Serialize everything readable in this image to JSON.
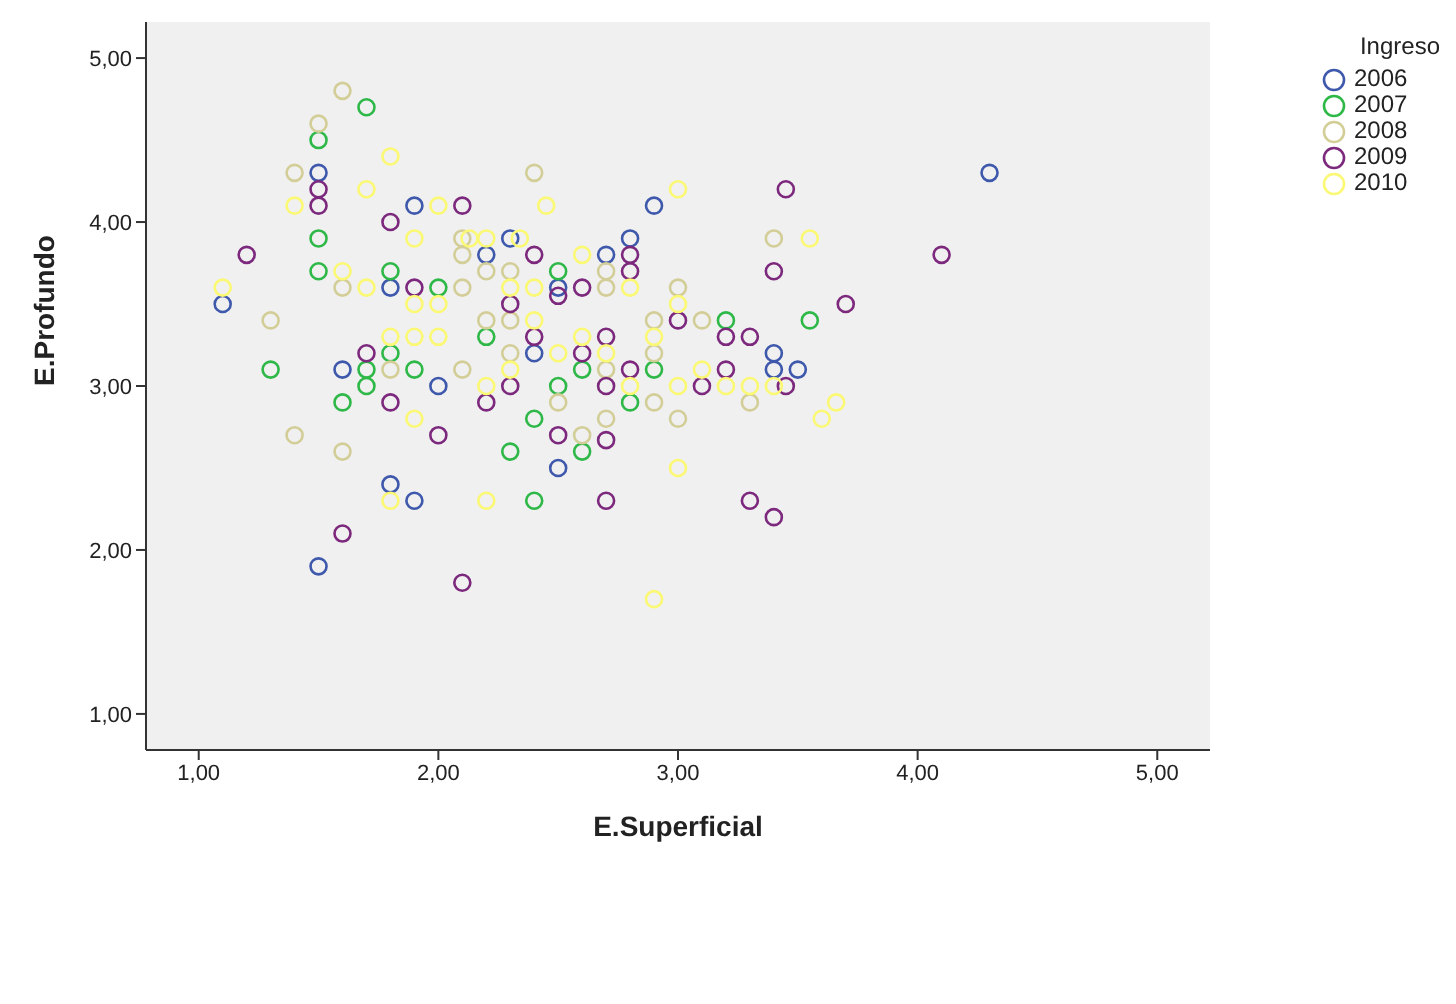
{
  "chart_data": {
    "type": "scatter",
    "xlabel": "E.Superficial",
    "ylabel": "E.Profundo",
    "legend_title": "Ingreso",
    "legend": "top right",
    "marker": "circle",
    "grid": false,
    "xlim": [
      0.78,
      5.22
    ],
    "ylim": [
      0.78,
      5.22
    ],
    "xticks": [
      {
        "value": 1,
        "label": "1,00"
      },
      {
        "value": 2,
        "label": "2,00"
      },
      {
        "value": 3,
        "label": "3,00"
      },
      {
        "value": 4,
        "label": "4,00"
      },
      {
        "value": 5,
        "label": "5,00"
      }
    ],
    "yticks": [
      {
        "value": 1,
        "label": "1,00"
      },
      {
        "value": 2,
        "label": "2,00"
      },
      {
        "value": 3,
        "label": "3,00"
      },
      {
        "value": 4,
        "label": "4,00"
      },
      {
        "value": 5,
        "label": "5,00"
      }
    ],
    "series": [
      {
        "name": "2006",
        "color": "#3e58ac",
        "x": [
          1.5,
          1.9,
          2.9,
          2.3,
          2.8,
          2.2,
          2.7,
          1.8,
          2.5,
          1.1,
          2.4,
          3.4,
          1.6,
          3.4,
          3.5,
          2.0,
          1.8,
          1.9,
          2.5,
          1.5,
          4.3
        ],
        "values": [
          4.3,
          4.1,
          4.1,
          3.9,
          3.9,
          3.8,
          3.8,
          3.6,
          3.6,
          3.5,
          3.2,
          3.2,
          3.1,
          3.1,
          3.1,
          3.0,
          2.4,
          2.3,
          2.5,
          1.9,
          4.3
        ]
      },
      {
        "name": "2007",
        "color": "#2eb848",
        "x": [
          1.7,
          1.5,
          1.5,
          1.5,
          1.8,
          2.5,
          2.0,
          2.2,
          3.2,
          3.55,
          1.8,
          1.3,
          1.7,
          1.9,
          2.6,
          2.9,
          1.7,
          2.5,
          1.6,
          2.8,
          2.4,
          2.3,
          2.6,
          2.4
        ],
        "values": [
          4.7,
          4.5,
          3.9,
          3.7,
          3.7,
          3.7,
          3.6,
          3.3,
          3.4,
          3.4,
          3.2,
          3.1,
          3.1,
          3.1,
          3.1,
          3.1,
          3.0,
          3.0,
          2.9,
          2.9,
          2.8,
          2.6,
          2.6,
          2.3
        ]
      },
      {
        "name": "2008",
        "color": "#d3ce97",
        "x": [
          1.6,
          1.5,
          1.4,
          2.4,
          2.1,
          3.4,
          2.1,
          2.2,
          2.3,
          2.7,
          1.6,
          2.1,
          2.7,
          3.0,
          1.3,
          2.2,
          2.3,
          2.9,
          3.1,
          2.3,
          2.9,
          1.8,
          2.1,
          2.7,
          2.5,
          2.9,
          3.3,
          2.7,
          3.0,
          1.4,
          2.6,
          1.6
        ],
        "values": [
          4.8,
          4.6,
          4.3,
          4.3,
          3.9,
          3.9,
          3.8,
          3.7,
          3.7,
          3.7,
          3.6,
          3.6,
          3.6,
          3.6,
          3.4,
          3.4,
          3.4,
          3.4,
          3.4,
          3.2,
          3.2,
          3.1,
          3.1,
          3.1,
          2.9,
          2.9,
          2.9,
          2.8,
          2.8,
          2.7,
          2.7,
          2.6
        ]
      },
      {
        "name": "2009",
        "color": "#7c287d",
        "x": [
          1.5,
          3.45,
          1.5,
          2.1,
          1.8,
          1.2,
          2.4,
          2.8,
          4.1,
          2.8,
          3.4,
          1.9,
          2.6,
          2.5,
          2.3,
          3.7,
          3.0,
          2.4,
          2.7,
          3.2,
          3.3,
          1.7,
          2.6,
          2.8,
          3.2,
          2.3,
          2.7,
          3.1,
          3.45,
          1.8,
          2.2,
          2.0,
          2.5,
          2.7,
          2.7,
          3.3,
          3.4,
          1.6,
          2.1
        ],
        "values": [
          4.2,
          4.2,
          4.1,
          4.1,
          4.0,
          3.8,
          3.8,
          3.8,
          3.8,
          3.7,
          3.7,
          3.6,
          3.6,
          3.55,
          3.5,
          3.5,
          3.4,
          3.3,
          3.3,
          3.3,
          3.3,
          3.2,
          3.2,
          3.1,
          3.1,
          3.0,
          3.0,
          3.0,
          3.0,
          2.9,
          2.9,
          2.7,
          2.7,
          2.67,
          2.3,
          2.3,
          2.2,
          2.1,
          1.8
        ]
      },
      {
        "name": "2010",
        "color": "#fbf873",
        "x": [
          1.8,
          1.7,
          3.0,
          1.4,
          2.0,
          2.45,
          1.9,
          2.13,
          2.2,
          2.34,
          3.55,
          2.6,
          1.6,
          1.1,
          1.7,
          2.3,
          2.4,
          2.8,
          1.9,
          2.0,
          3.0,
          2.4,
          1.8,
          1.9,
          2.0,
          2.6,
          2.9,
          2.5,
          2.7,
          2.3,
          3.1,
          2.2,
          2.8,
          3.0,
          3.2,
          3.3,
          3.4,
          3.66,
          1.9,
          3.6,
          3.0,
          1.8,
          2.2,
          2.9
        ],
        "values": [
          4.4,
          4.2,
          4.2,
          4.1,
          4.1,
          4.1,
          3.9,
          3.9,
          3.9,
          3.9,
          3.9,
          3.8,
          3.7,
          3.6,
          3.6,
          3.6,
          3.6,
          3.6,
          3.5,
          3.5,
          3.5,
          3.4,
          3.3,
          3.3,
          3.3,
          3.3,
          3.3,
          3.2,
          3.2,
          3.1,
          3.1,
          3.0,
          3.0,
          3.0,
          3.0,
          3.0,
          3.0,
          2.9,
          2.8,
          2.8,
          2.5,
          2.3,
          2.3,
          1.7
        ]
      }
    ]
  }
}
